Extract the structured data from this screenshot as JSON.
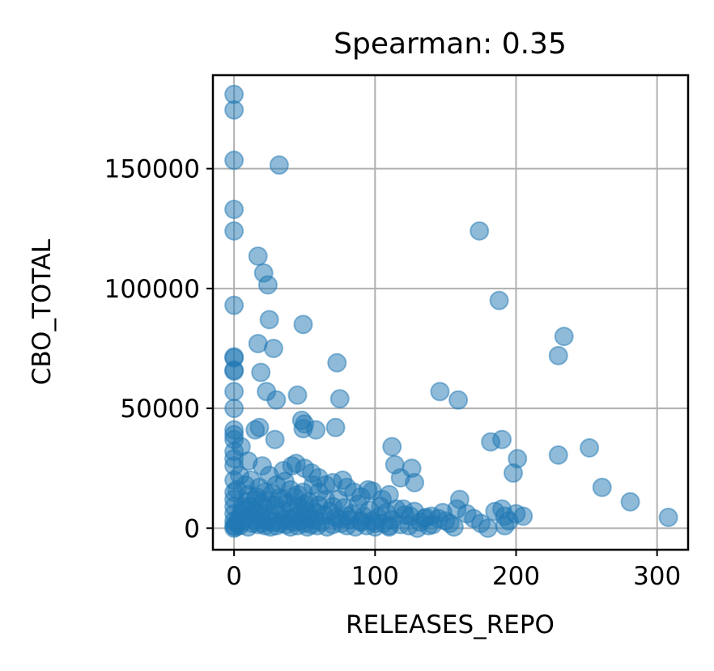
{
  "chart_data": {
    "type": "scatter",
    "title": "Spearman: 0.35",
    "xlabel": "RELEASES_REPO",
    "ylabel": "CBO_TOTAL",
    "xlim": [
      -15,
      322
    ],
    "ylim": [
      -9000,
      189000
    ],
    "xticks": [
      0,
      100,
      200,
      300
    ],
    "yticks": [
      0,
      50000,
      100000,
      150000
    ],
    "xtick_labels": [
      "0",
      "100",
      "200",
      "300"
    ],
    "ytick_labels": [
      "0",
      "50000",
      "100000",
      "150000"
    ],
    "grid": true,
    "marker_color": "#1f77b4",
    "marker_alpha": 0.5,
    "points": [
      [
        0,
        181000
      ],
      [
        0,
        174500
      ],
      [
        0,
        153500
      ],
      [
        32,
        151500
      ],
      [
        0,
        133000
      ],
      [
        0,
        124000
      ],
      [
        17,
        113500
      ],
      [
        21,
        106500
      ],
      [
        24,
        101500
      ],
      [
        0,
        93000
      ],
      [
        25,
        87000
      ],
      [
        49,
        85000
      ],
      [
        17,
        77000
      ],
      [
        28,
        75000
      ],
      [
        0,
        71000
      ],
      [
        0,
        71500
      ],
      [
        73,
        69000
      ],
      [
        0,
        66000
      ],
      [
        0,
        65500
      ],
      [
        19,
        65000
      ],
      [
        0,
        57000
      ],
      [
        23,
        57000
      ],
      [
        45,
        55500
      ],
      [
        30,
        53500
      ],
      [
        75,
        54000
      ],
      [
        0,
        50000
      ],
      [
        48,
        45000
      ],
      [
        50,
        43500
      ],
      [
        49,
        41500
      ],
      [
        58,
        41000
      ],
      [
        72,
        42000
      ],
      [
        18,
        42000
      ],
      [
        15,
        41000
      ],
      [
        0,
        41000
      ],
      [
        0,
        39000
      ],
      [
        0,
        37000
      ],
      [
        29,
        37000
      ],
      [
        5,
        34000
      ],
      [
        0,
        32000
      ],
      [
        0,
        29000
      ],
      [
        10,
        28000
      ],
      [
        0,
        26000
      ],
      [
        20,
        26000
      ],
      [
        35,
        24000
      ],
      [
        41,
        26000
      ],
      [
        44,
        27000
      ],
      [
        50,
        25000
      ],
      [
        55,
        23000
      ],
      [
        60,
        21000
      ],
      [
        65,
        18000
      ],
      [
        70,
        19000
      ],
      [
        77,
        20000
      ],
      [
        80,
        17000
      ],
      [
        85,
        15000
      ],
      [
        90,
        13000
      ],
      [
        95,
        16000
      ],
      [
        98,
        15500
      ],
      [
        105,
        12000
      ],
      [
        110,
        14000
      ],
      [
        112,
        34000
      ],
      [
        114,
        26500
      ],
      [
        126,
        25000
      ],
      [
        128,
        19000
      ],
      [
        118,
        21000
      ],
      [
        120,
        8000
      ],
      [
        125,
        5000
      ],
      [
        135,
        4000
      ],
      [
        140,
        5000
      ],
      [
        145,
        4000
      ],
      [
        150,
        3000
      ],
      [
        146,
        57000
      ],
      [
        159,
        53500
      ],
      [
        158,
        8000
      ],
      [
        160,
        12000
      ],
      [
        165,
        6000
      ],
      [
        170,
        4000
      ],
      [
        175,
        2000
      ],
      [
        180,
        0
      ],
      [
        174,
        124000
      ],
      [
        188,
        95000
      ],
      [
        182,
        36000
      ],
      [
        190,
        37000
      ],
      [
        192,
        1000
      ],
      [
        195,
        3000
      ],
      [
        198,
        23000
      ],
      [
        201,
        29000
      ],
      [
        205,
        5000
      ],
      [
        230,
        72000
      ],
      [
        234,
        80000
      ],
      [
        230,
        30500
      ],
      [
        252,
        33500
      ],
      [
        261,
        17000
      ],
      [
        281,
        11000
      ],
      [
        308,
        4500
      ],
      [
        185,
        7000
      ],
      [
        190,
        8000
      ],
      [
        192,
        5000
      ],
      [
        200,
        6000
      ],
      [
        138,
        1000
      ],
      [
        130,
        0
      ],
      [
        110,
        1000
      ],
      [
        100,
        2000
      ],
      [
        90,
        3000
      ],
      [
        80,
        5000
      ],
      [
        75,
        4000
      ],
      [
        70,
        9000
      ],
      [
        65,
        12000
      ],
      [
        60,
        15000
      ],
      [
        55,
        8000
      ],
      [
        50,
        10000
      ],
      [
        45,
        14000
      ],
      [
        40,
        16000
      ],
      [
        35,
        12000
      ],
      [
        30,
        18000
      ],
      [
        25,
        22000
      ],
      [
        22,
        15000
      ],
      [
        20,
        10000
      ],
      [
        18,
        6000
      ],
      [
        15,
        12000
      ],
      [
        12,
        20000
      ],
      [
        10,
        14000
      ],
      [
        8,
        18000
      ],
      [
        6,
        9000
      ],
      [
        4,
        22000
      ],
      [
        2,
        16000
      ],
      [
        0,
        20000
      ],
      [
        0,
        15000
      ],
      [
        0,
        12000
      ],
      [
        0,
        9000
      ],
      [
        0,
        6000
      ],
      [
        0,
        3000
      ],
      [
        0,
        1000
      ],
      [
        0,
        0
      ],
      [
        1,
        500
      ],
      [
        2,
        2000
      ],
      [
        3,
        4000
      ],
      [
        4,
        1000
      ],
      [
        5,
        6000
      ],
      [
        6,
        2500
      ],
      [
        7,
        8000
      ],
      [
        8,
        3500
      ],
      [
        9,
        11000
      ],
      [
        10,
        500
      ],
      [
        11,
        5000
      ],
      [
        12,
        9000
      ],
      [
        13,
        2000
      ],
      [
        14,
        7000
      ],
      [
        15,
        3000
      ],
      [
        16,
        13000
      ],
      [
        17,
        1500
      ],
      [
        18,
        17000
      ],
      [
        19,
        4500
      ],
      [
        20,
        2000
      ],
      [
        21,
        8500
      ],
      [
        22,
        1000
      ],
      [
        23,
        11500
      ],
      [
        24,
        3000
      ],
      [
        25,
        6500
      ],
      [
        26,
        500
      ],
      [
        27,
        14500
      ],
      [
        28,
        2500
      ],
      [
        29,
        9500
      ],
      [
        30,
        1000
      ],
      [
        31,
        5500
      ],
      [
        32,
        12500
      ],
      [
        33,
        2000
      ],
      [
        34,
        7500
      ],
      [
        35,
        3500
      ],
      [
        36,
        19500
      ],
      [
        37,
        1500
      ],
      [
        38,
        10500
      ],
      [
        39,
        4000
      ],
      [
        40,
        500
      ],
      [
        41,
        8000
      ],
      [
        42,
        2500
      ],
      [
        43,
        13000
      ],
      [
        44,
        5000
      ],
      [
        45,
        1000
      ],
      [
        46,
        9000
      ],
      [
        47,
        3000
      ],
      [
        48,
        6000
      ],
      [
        49,
        15000
      ],
      [
        50,
        2000
      ],
      [
        51,
        7000
      ],
      [
        52,
        500
      ],
      [
        53,
        11000
      ],
      [
        54,
        4000
      ],
      [
        55,
        1500
      ],
      [
        56,
        18000
      ],
      [
        57,
        3500
      ],
      [
        58,
        6500
      ],
      [
        59,
        1000
      ],
      [
        60,
        9500
      ],
      [
        62,
        2500
      ],
      [
        64,
        5500
      ],
      [
        66,
        500
      ],
      [
        68,
        7000
      ],
      [
        70,
        1500
      ],
      [
        72,
        4500
      ],
      [
        74,
        12000
      ],
      [
        76,
        2000
      ],
      [
        78,
        8500
      ],
      [
        80,
        1000
      ],
      [
        82,
        3500
      ],
      [
        84,
        6000
      ],
      [
        86,
        500
      ],
      [
        88,
        10000
      ],
      [
        90,
        2500
      ],
      [
        92,
        5000
      ],
      [
        94,
        1000
      ],
      [
        96,
        7500
      ],
      [
        98,
        3000
      ],
      [
        100,
        500
      ],
      [
        102,
        4500
      ],
      [
        104,
        9000
      ],
      [
        106,
        2000
      ],
      [
        108,
        6500
      ],
      [
        110,
        500
      ],
      [
        112,
        3500
      ],
      [
        115,
        8000
      ],
      [
        118,
        1500
      ],
      [
        121,
        5500
      ],
      [
        124,
        1000
      ],
      [
        128,
        7000
      ],
      [
        132,
        2500
      ],
      [
        136,
        4500
      ],
      [
        141,
        1500
      ],
      [
        148,
        6500
      ],
      [
        153,
        2000
      ],
      [
        156,
        500
      ]
    ]
  }
}
